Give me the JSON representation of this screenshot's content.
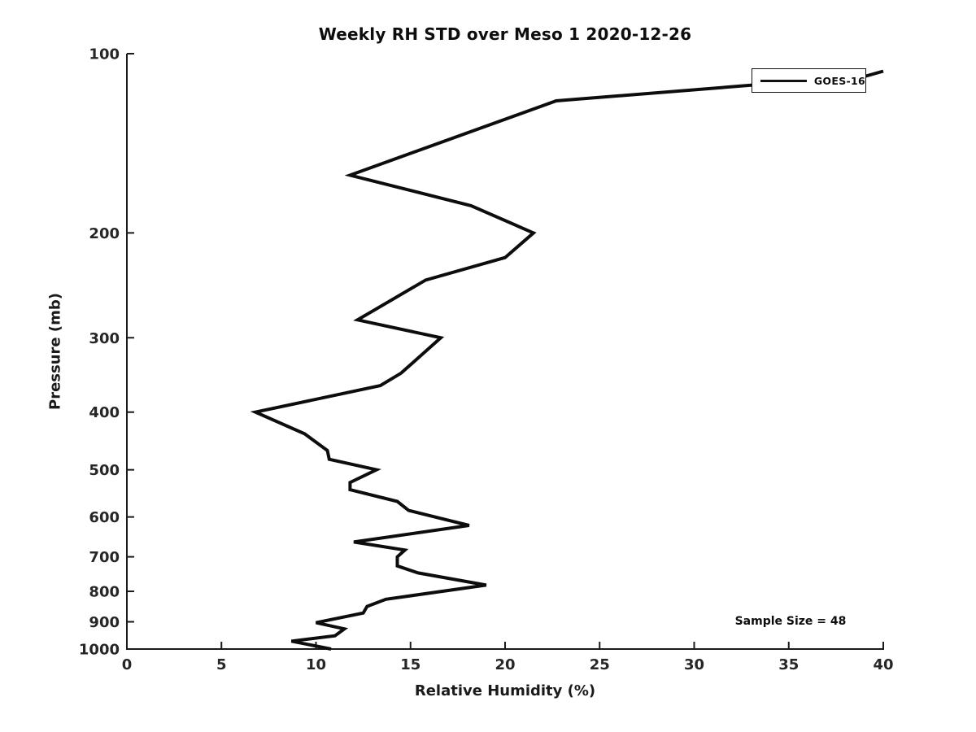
{
  "title": "Weekly RH STD over Meso 1 2020-12-26",
  "colors": {
    "background": "#ffffff",
    "line": "#0d0d0d",
    "axis": "#1a1a1a"
  },
  "chart_data": {
    "type": "line",
    "title": "Weekly RH STD over Meso 1 2020-12-26",
    "xlabel": "Relative Humidity (%)",
    "ylabel": "Pressure (mb)",
    "xlim": [
      0,
      40
    ],
    "ylim": [
      100,
      1000
    ],
    "y_scale": "log",
    "y_inverted": true,
    "grid": false,
    "x_ticks": [
      0,
      5,
      10,
      15,
      20,
      25,
      30,
      35,
      40
    ],
    "y_ticks": [
      100,
      200,
      300,
      400,
      500,
      600,
      700,
      800,
      900,
      1000
    ],
    "legend_position": "upper right",
    "series": [
      {
        "name": "GOES-16",
        "color": "#0d0d0d",
        "points_format": [
          "relative_humidity_pct",
          "pressure_mb"
        ],
        "points": [
          [
            10.8,
            1000
          ],
          [
            8.7,
            970
          ],
          [
            11.0,
            950
          ],
          [
            11.5,
            925
          ],
          [
            10.0,
            903
          ],
          [
            12.5,
            870
          ],
          [
            12.7,
            848
          ],
          [
            13.7,
            825
          ],
          [
            19.0,
            781
          ],
          [
            15.4,
            745
          ],
          [
            14.3,
            725
          ],
          [
            14.3,
            700
          ],
          [
            14.7,
            682
          ],
          [
            12.0,
            661
          ],
          [
            18.1,
            620
          ],
          [
            14.9,
            585
          ],
          [
            14.3,
            565
          ],
          [
            11.8,
            540
          ],
          [
            11.8,
            525
          ],
          [
            13.2,
            500
          ],
          [
            10.7,
            480
          ],
          [
            10.6,
            464
          ],
          [
            9.4,
            435
          ],
          [
            6.8,
            400
          ],
          [
            13.4,
            361
          ],
          [
            14.5,
            344
          ],
          [
            16.6,
            300
          ],
          [
            12.2,
            280
          ],
          [
            15.8,
            240
          ],
          [
            20.0,
            220
          ],
          [
            21.5,
            200
          ],
          [
            18.2,
            180
          ],
          [
            11.8,
            160
          ],
          [
            22.7,
            120
          ],
          [
            39.1,
            109
          ],
          [
            40.0,
            107
          ]
        ]
      }
    ],
    "annotations": [
      {
        "text": "Sample Size = 48"
      }
    ]
  }
}
